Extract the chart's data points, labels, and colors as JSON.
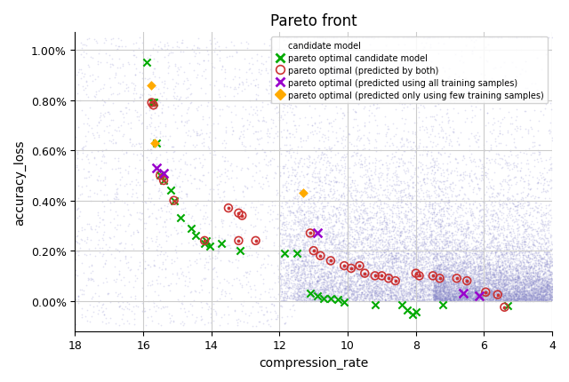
{
  "title": "Pareto front",
  "xlabel": "compression_rate",
  "ylabel": "accuracy_loss",
  "xlim": [
    18.0,
    4.0
  ],
  "ylim": [
    -0.0012,
    0.0107
  ],
  "yticks": [
    0.0,
    0.002,
    0.004,
    0.006,
    0.008,
    0.01
  ],
  "ytick_labels": [
    "0.00%",
    "0.20%",
    "0.40%",
    "0.60%",
    "0.80%",
    "1.00%"
  ],
  "xticks": [
    18.0,
    16.0,
    14.0,
    12.0,
    10.0,
    8.0,
    6.0,
    4.0
  ],
  "background_color": "#ffffff",
  "grid_color": "#cccccc",
  "candidate_dot_color": "#8888cc",
  "pareto_green_color": "#00aa00",
  "pareto_both_facecolor": "#cc3333",
  "pareto_both_edgecolor": "#cc3333",
  "pareto_all_color": "#9900cc",
  "pareto_few_color": "#ffaa00",
  "green_x_points": [
    [
      15.9,
      0.0095
    ],
    [
      15.75,
      0.0079
    ],
    [
      15.7,
      0.0079
    ],
    [
      15.6,
      0.0063
    ],
    [
      15.5,
      0.005
    ],
    [
      15.4,
      0.0048
    ],
    [
      15.2,
      0.0044
    ],
    [
      15.1,
      0.004
    ],
    [
      14.9,
      0.0033
    ],
    [
      14.6,
      0.0029
    ],
    [
      14.45,
      0.0026
    ],
    [
      14.2,
      0.0023
    ],
    [
      14.05,
      0.0022
    ],
    [
      13.15,
      0.002
    ],
    [
      11.85,
      0.0019
    ],
    [
      14.15,
      0.0024
    ],
    [
      13.7,
      0.0023
    ],
    [
      11.1,
      0.0003
    ],
    [
      10.9,
      0.0002
    ],
    [
      10.7,
      0.0001
    ],
    [
      10.5,
      0.0001
    ],
    [
      10.3,
      5e-05
    ],
    [
      10.1,
      -5e-05
    ],
    [
      11.5,
      0.0019
    ],
    [
      9.2,
      -0.00015
    ],
    [
      8.4,
      -0.00015
    ],
    [
      8.25,
      -0.00035
    ],
    [
      8.1,
      -0.00055
    ],
    [
      8.0,
      -0.00045
    ],
    [
      7.2,
      -0.00015
    ],
    [
      5.3,
      -0.0002
    ]
  ],
  "red_circle_points": [
    [
      15.75,
      0.0079
    ],
    [
      15.7,
      0.0078
    ],
    [
      15.5,
      0.005
    ],
    [
      15.4,
      0.0048
    ],
    [
      15.1,
      0.004
    ],
    [
      14.2,
      0.0024
    ],
    [
      13.2,
      0.0024
    ],
    [
      13.5,
      0.0037
    ],
    [
      13.2,
      0.0035
    ],
    [
      13.1,
      0.0034
    ],
    [
      11.1,
      0.0027
    ],
    [
      11.0,
      0.002
    ],
    [
      12.7,
      0.0024
    ],
    [
      10.8,
      0.0018
    ],
    [
      10.1,
      0.0014
    ],
    [
      9.9,
      0.0013
    ],
    [
      9.5,
      0.0011
    ],
    [
      9.2,
      0.001
    ],
    [
      9.0,
      0.001
    ],
    [
      8.8,
      0.0009
    ],
    [
      8.6,
      0.0008
    ],
    [
      9.65,
      0.0014
    ],
    [
      10.5,
      0.0016
    ],
    [
      8.0,
      0.0011
    ],
    [
      7.9,
      0.001
    ],
    [
      7.5,
      0.001
    ],
    [
      7.3,
      0.0009
    ],
    [
      6.8,
      0.0009
    ],
    [
      6.5,
      0.0008
    ],
    [
      5.95,
      0.00035
    ],
    [
      5.6,
      0.00025
    ],
    [
      5.4,
      -0.00025
    ]
  ],
  "purple_x_points": [
    [
      15.6,
      0.0053
    ],
    [
      15.4,
      0.0051
    ],
    [
      10.9,
      0.0027
    ],
    [
      6.6,
      0.0003
    ],
    [
      6.15,
      0.0002
    ]
  ],
  "orange_plus_points": [
    [
      15.78,
      0.0086
    ],
    [
      15.65,
      0.0063
    ],
    [
      11.3,
      0.0043
    ]
  ],
  "candidate_seed": 42,
  "n_candidates_sparse": 2000,
  "n_candidates_dense": 8000
}
